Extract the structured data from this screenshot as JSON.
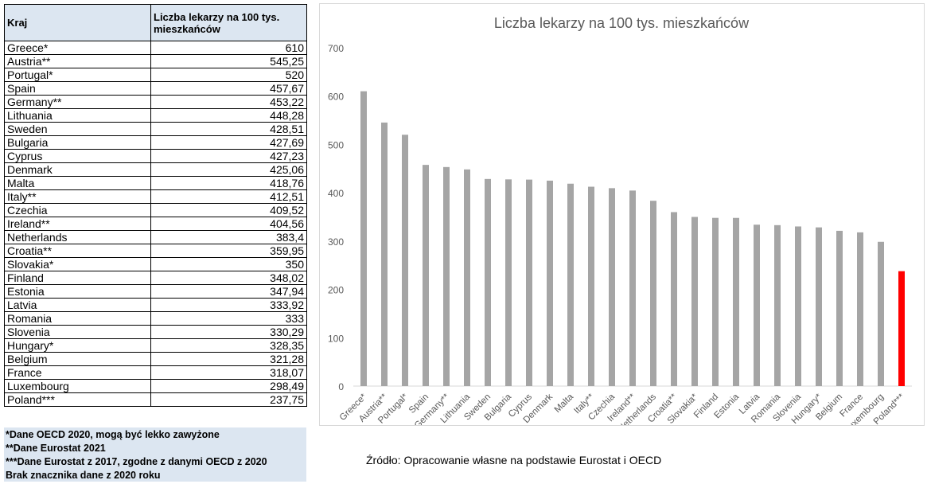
{
  "table": {
    "headers": [
      "Kraj",
      "Liczba lekarzy na 100 tys. mieszkańców"
    ],
    "rows": [
      [
        "Greece*",
        "610"
      ],
      [
        "Austria**",
        "545,25"
      ],
      [
        "Portugal*",
        "520"
      ],
      [
        "Spain",
        "457,67"
      ],
      [
        "Germany**",
        "453,22"
      ],
      [
        "Lithuania",
        "448,28"
      ],
      [
        "Sweden",
        "428,51"
      ],
      [
        "Bulgaria",
        "427,69"
      ],
      [
        "Cyprus",
        "427,23"
      ],
      [
        "Denmark",
        "425,06"
      ],
      [
        "Malta",
        "418,76"
      ],
      [
        "Italy**",
        "412,51"
      ],
      [
        "Czechia",
        "409,52"
      ],
      [
        "Ireland**",
        "404,56"
      ],
      [
        "Netherlands",
        "383,4"
      ],
      [
        "Croatia**",
        "359,95"
      ],
      [
        "Slovakia*",
        "350"
      ],
      [
        "Finland",
        "348,02"
      ],
      [
        "Estonia",
        "347,94"
      ],
      [
        "Latvia",
        "333,92"
      ],
      [
        "Romania",
        "333"
      ],
      [
        "Slovenia",
        "330,29"
      ],
      [
        "Hungary*",
        "328,35"
      ],
      [
        "Belgium",
        "321,28"
      ],
      [
        "France",
        "318,07"
      ],
      [
        "Luxembourg",
        "298,49"
      ],
      [
        "Poland***",
        "237,75"
      ]
    ]
  },
  "notes": [
    "*Dane OECD 2020, mogą być lekko zawyżone",
    "**Dane Eurostat 2021",
    "***Dane Eurostat z 2017, zgodne z danymi OECD z 2020",
    "Brak znacznika dane z 2020 roku"
  ],
  "source": "Źródło: Opracowanie własne na podstawie Eurostat i OECD",
  "chart_data": {
    "type": "bar",
    "title": "Liczba lekarzy na 100 tys. mieszkańców",
    "xlabel": "",
    "ylabel": "",
    "ylim": [
      0,
      700
    ],
    "yticks": [
      0,
      100,
      200,
      300,
      400,
      500,
      600,
      700
    ],
    "grid": false,
    "categories": [
      "Greece*",
      "Austria**",
      "Portugal*",
      "Spain",
      "Germany**",
      "Lithuania",
      "Sweden",
      "Bulgaria",
      "Cyprus",
      "Denmark",
      "Malta",
      "Italy**",
      "Czechia",
      "Ireland**",
      "Netherlands",
      "Croatia**",
      "Slovakia*",
      "Finland",
      "Estonia",
      "Latvia",
      "Romania",
      "Slovenia",
      "Hungary*",
      "Belgium",
      "France",
      "Luxembourg",
      "Poland***"
    ],
    "values": [
      610,
      545.25,
      520,
      457.67,
      453.22,
      448.28,
      428.51,
      427.69,
      427.23,
      425.06,
      418.76,
      412.51,
      409.52,
      404.56,
      383.4,
      359.95,
      350,
      348.02,
      347.94,
      333.92,
      333,
      330.29,
      328.35,
      321.28,
      318.07,
      298.49,
      237.75
    ],
    "colors": {
      "default": "#a5a5a5",
      "highlight": "#ff0000"
    },
    "highlight": "Poland***"
  }
}
